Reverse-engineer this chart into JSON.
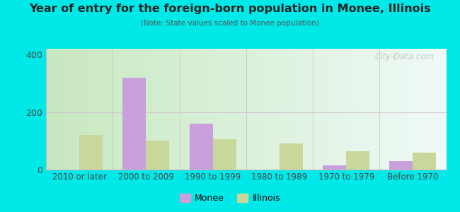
{
  "categories": [
    "2010 or later",
    "2000 to 2009",
    "1990 to 1999",
    "1980 to 1989",
    "1970 to 1979",
    "Before 1970"
  ],
  "monee_values": [
    0,
    320,
    160,
    0,
    15,
    30
  ],
  "illinois_values": [
    120,
    100,
    105,
    90,
    65,
    60
  ],
  "monee_color": "#c9a0dc",
  "illinois_color": "#c8d89a",
  "title": "Year of entry for the foreign-born population in Monee, Illinois",
  "subtitle": "(Note: State values scaled to Monee population)",
  "ylim": [
    0,
    420
  ],
  "yticks": [
    0,
    200,
    400
  ],
  "outer_bg": "#00e8e8",
  "bar_width": 0.35,
  "legend_monee": "Monee",
  "legend_illinois": "Illinois",
  "watermark": "City-Data.com",
  "bg_color_left": "#c8e8c0",
  "bg_color_right": "#f0faf8"
}
